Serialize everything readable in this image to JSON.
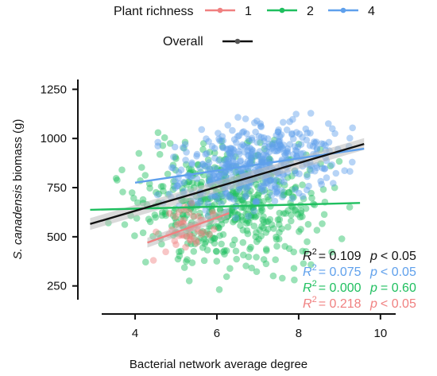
{
  "chart_data": {
    "type": "scatter",
    "xlabel": "Bacterial network average degree",
    "ylabel_italic": "S. canadensis",
    "ylabel_rest": " biomass (g)",
    "xlim": [
      2.6,
      10.8
    ],
    "ylim": [
      180,
      1300
    ],
    "xticks": [
      4,
      6,
      8,
      10
    ],
    "yticks": [
      250,
      500,
      750,
      1000,
      1250
    ],
    "legend": {
      "title": "Plant richness",
      "overall_label": "Overall",
      "placement": "top"
    },
    "series": [
      {
        "name": "1",
        "color": "#f08080",
        "fit": {
          "x0": 4.3,
          "y0": 470,
          "x1": 6.3,
          "y1": 620
        },
        "cloud": {
          "xmin": 4.2,
          "xmax": 6.4,
          "ymin": 380,
          "ymax": 720,
          "n": 50
        }
      },
      {
        "name": "2",
        "color": "#1fbf5f",
        "fit": {
          "x0": 2.9,
          "y0": 637,
          "x1": 9.5,
          "y1": 672
        },
        "cloud": {
          "xmin": 2.9,
          "xmax": 9.6,
          "ymin": 190,
          "ymax": 1180,
          "n": 520
        }
      },
      {
        "name": "4",
        "color": "#5fa0ec",
        "fit": {
          "x0": 4.0,
          "y0": 775,
          "x1": 9.6,
          "y1": 948
        },
        "cloud": {
          "xmin": 4.1,
          "xmax": 9.8,
          "ymin": 520,
          "ymax": 1190,
          "n": 460
        }
      }
    ],
    "overall": {
      "color": "#111111",
      "fit": {
        "x0": 2.9,
        "y0": 565,
        "x1": 9.6,
        "y1": 972
      }
    },
    "stats": [
      {
        "color": "#111111",
        "r2_label": "R",
        "sup": "2",
        "r2_value": "= 0.109",
        "p_label": "p",
        "p_value": "< 0.05"
      },
      {
        "color": "#5fa0ec",
        "r2_label": "R",
        "sup": "2",
        "r2_value": "= 0.075",
        "p_label": "p",
        "p_value": "< 0.05"
      },
      {
        "color": "#1fbf5f",
        "r2_label": "R",
        "sup": "2",
        "r2_value": "= 0.000",
        "p_label": "p",
        "p_value": "= 0.60"
      },
      {
        "color": "#f08080",
        "r2_label": "R",
        "sup": "2",
        "r2_value": "= 0.218",
        "p_label": "p",
        "p_value": "< 0.05"
      }
    ]
  }
}
